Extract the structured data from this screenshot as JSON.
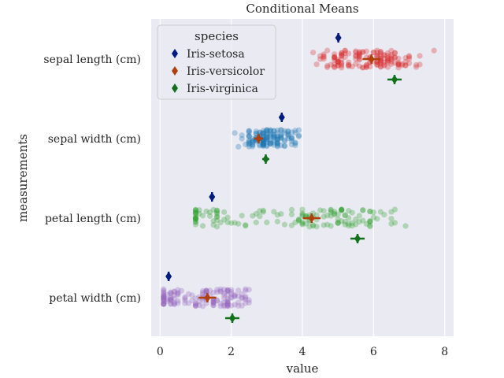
{
  "chart_data": {
    "type": "scatter",
    "title": "Conditional Means",
    "xlabel": "value",
    "ylabel": "measurements",
    "xlim": [
      -0.25,
      8.25
    ],
    "x_ticks": [
      "0",
      "2",
      "4",
      "6",
      "8"
    ],
    "x_tick_values": [
      0,
      2,
      4,
      6,
      8
    ],
    "categories": [
      "sepal length (cm)",
      "sepal width (cm)",
      "petal length (cm)",
      "petal width (cm)"
    ],
    "grid": true,
    "background_color": "#eaeaf2",
    "strip_colors": [
      "#d62728",
      "#1f77b4",
      "#2ca02c",
      "#9467bd"
    ],
    "strip_ranges": [
      {
        "category": "sepal length (cm)",
        "min": 4.3,
        "max": 7.9
      },
      {
        "category": "sepal width (cm)",
        "min": 2.0,
        "max": 4.4
      },
      {
        "category": "petal length (cm)",
        "min": 1.0,
        "max": 6.9
      },
      {
        "category": "petal width (cm)",
        "min": 0.1,
        "max": 2.5
      }
    ],
    "legend": {
      "title": "species",
      "placement": "upper-left",
      "entries": [
        "Iris-setosa",
        "Iris-versicolor",
        "Iris-virginica"
      ]
    },
    "series": [
      {
        "name": "Iris-setosa",
        "color": "#001c7f",
        "marker": "diamond",
        "values": [
          5.01,
          3.42,
          1.46,
          0.24
        ]
      },
      {
        "name": "Iris-versicolor",
        "color": "#b1400d",
        "marker": "diamond",
        "values": [
          5.94,
          2.77,
          4.26,
          1.33
        ]
      },
      {
        "name": "Iris-virginica",
        "color": "#12711c",
        "marker": "diamond",
        "values": [
          6.59,
          2.97,
          5.55,
          2.03
        ]
      }
    ]
  }
}
